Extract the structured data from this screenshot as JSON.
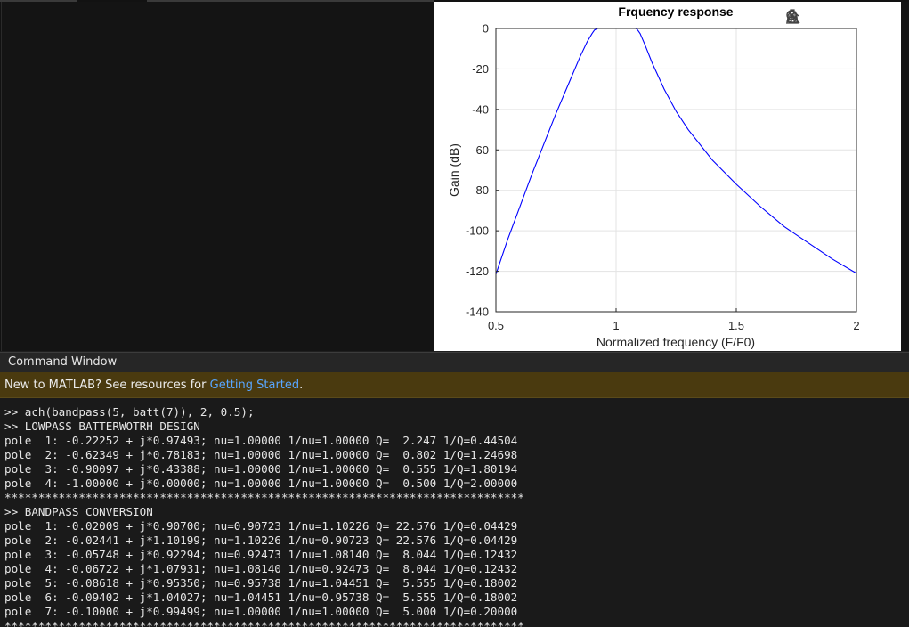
{
  "figure": {
    "title": "Frquency response",
    "toolbar": [
      {
        "name": "edit-plot-icon"
      },
      {
        "name": "brush-icon"
      },
      {
        "name": "pan-icon"
      },
      {
        "name": "zoom-in-icon"
      },
      {
        "name": "zoom-out-icon"
      },
      {
        "name": "home-icon"
      }
    ]
  },
  "chart_data": {
    "type": "line",
    "title": "Frquency response",
    "xlabel": "Normalized frequency (F/F0)",
    "ylabel": "Gain (dB)",
    "xlim": [
      0.5,
      2
    ],
    "ylim": [
      -140,
      0
    ],
    "xticks": [
      "0.5",
      "1",
      "1.5",
      "2"
    ],
    "yticks": [
      "0",
      "-20",
      "-40",
      "-60",
      "-80",
      "-100",
      "-120",
      "-140"
    ],
    "grid": true,
    "series": [
      {
        "color": "#0000ff",
        "x": [
          0.5,
          0.55,
          0.6,
          0.65,
          0.7,
          0.75,
          0.8,
          0.85,
          0.88,
          0.9,
          0.91,
          0.92,
          0.925,
          0.93,
          1.0,
          1.08,
          1.085,
          1.09,
          1.1,
          1.12,
          1.15,
          1.2,
          1.25,
          1.3,
          1.4,
          1.5,
          1.6,
          1.7,
          1.8,
          1.9,
          2.0
        ],
        "y": [
          -121.5,
          -104,
          -88,
          -72,
          -57,
          -42,
          -28,
          -14,
          -6.5,
          -2.5,
          -0.8,
          -0.15,
          0,
          0,
          0,
          0,
          -0.15,
          -0.8,
          -2.5,
          -8,
          -17,
          -30,
          -41,
          -50,
          -65,
          -77,
          -88,
          -98,
          -106,
          -114,
          -121
        ]
      }
    ]
  },
  "command_window": {
    "title": "Command Window",
    "banner_text": "New to MATLAB? See resources for ",
    "banner_link": "Getting Started",
    "banner_suffix": ".",
    "lines": [
      ">> ach(bandpass(5, batt(7)), 2, 0.5);",
      ">> LOWPASS BATTERWOTRH DESIGN",
      "pole  1: -0.22252 + j*0.97493; nu=1.00000 1/nu=1.00000 Q=  2.247 1/Q=0.44504",
      "pole  2: -0.62349 + j*0.78183; nu=1.00000 1/nu=1.00000 Q=  0.802 1/Q=1.24698",
      "pole  3: -0.90097 + j*0.43388; nu=1.00000 1/nu=1.00000 Q=  0.555 1/Q=1.80194",
      "pole  4: -1.00000 + j*0.00000; nu=1.00000 1/nu=1.00000 Q=  0.500 1/Q=2.00000",
      "*****************************************************************************",
      ">> BANDPASS CONVERSION",
      "pole  1: -0.02009 + j*0.90700; nu=0.90723 1/nu=1.10226 Q= 22.576 1/Q=0.04429",
      "pole  2: -0.02441 + j*1.10199; nu=1.10226 1/nu=0.90723 Q= 22.576 1/Q=0.04429",
      "pole  3: -0.05748 + j*0.92294; nu=0.92473 1/nu=1.08140 Q=  8.044 1/Q=0.12432",
      "pole  4: -0.06722 + j*1.07931; nu=1.08140 1/nu=0.92473 Q=  8.044 1/Q=0.12432",
      "pole  5: -0.08618 + j*0.95350; nu=0.95738 1/nu=1.04451 Q=  5.555 1/Q=0.18002",
      "pole  6: -0.09402 + j*1.04027; nu=1.04451 1/nu=0.95738 Q=  5.555 1/Q=0.18002",
      "pole  7: -0.10000 + j*0.99499; nu=1.00000 1/nu=1.00000 Q=  5.000 1/Q=0.20000",
      "*****************************************************************************"
    ]
  }
}
